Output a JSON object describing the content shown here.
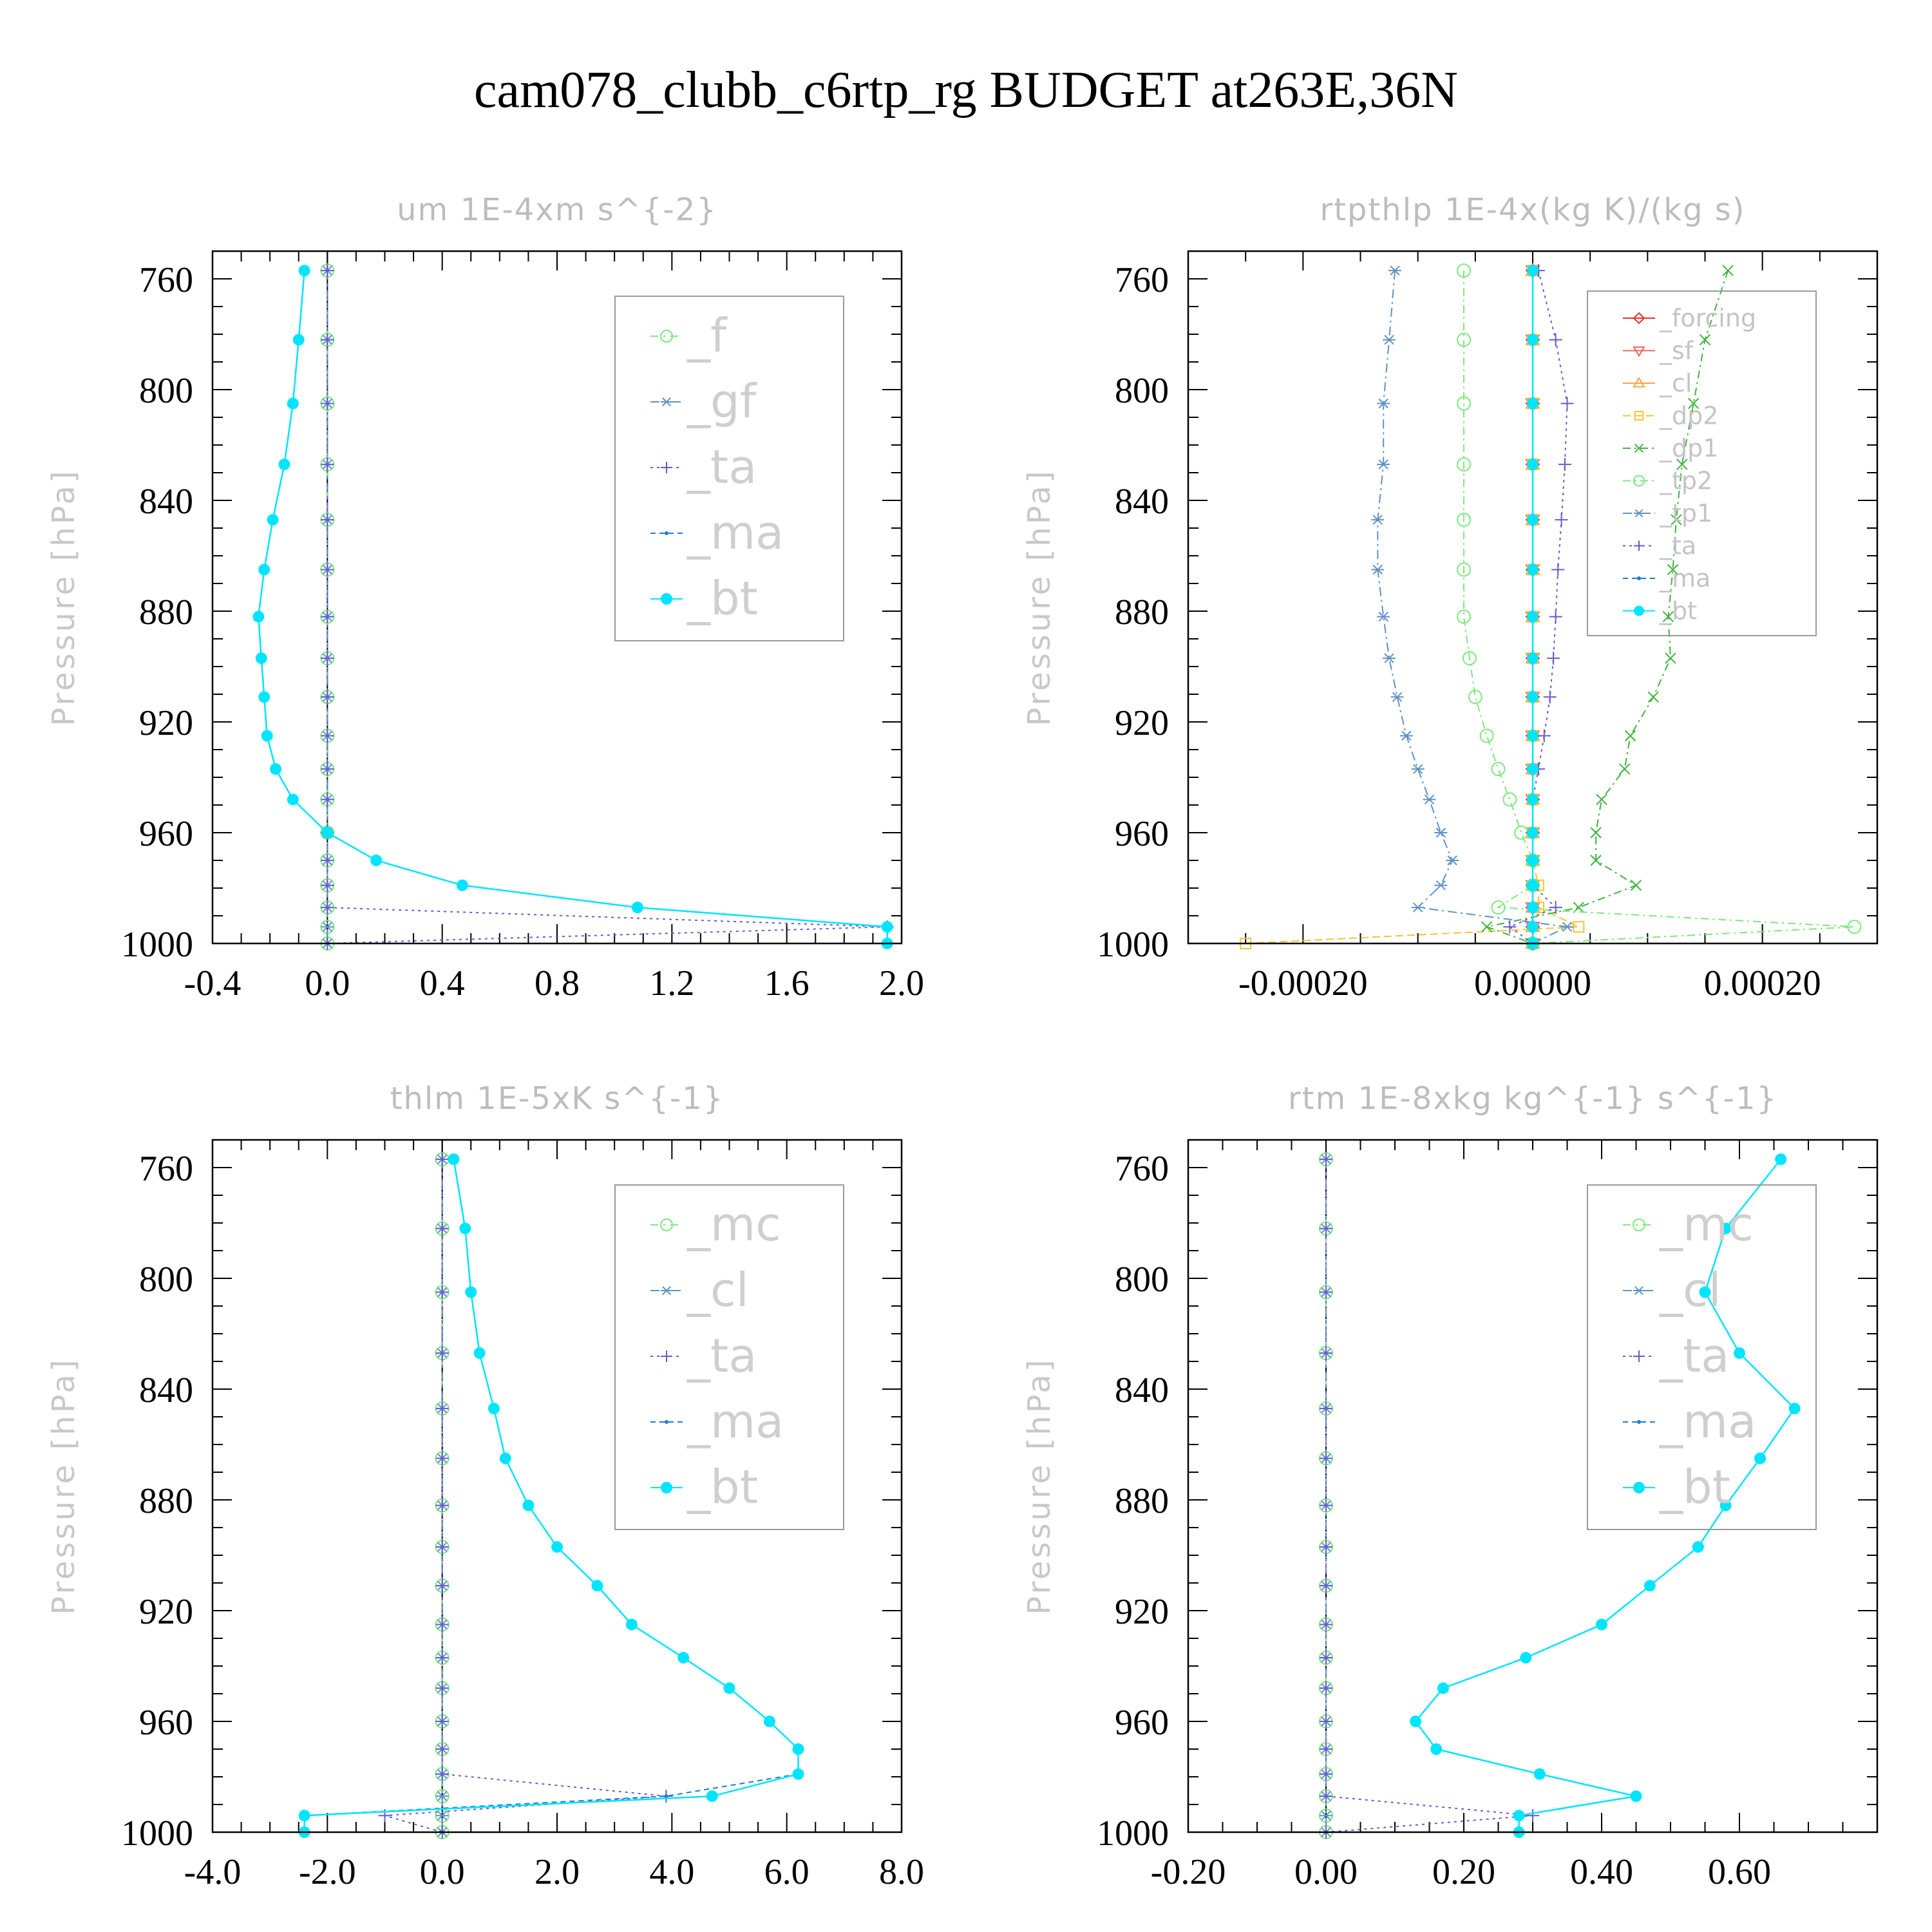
{
  "title": "cam078_clubb_c6rtp_rg  BUDGET at263E,36N",
  "y_levels": [
    757,
    782,
    805,
    827,
    847,
    865,
    882,
    897,
    911,
    925,
    937,
    948,
    960,
    970,
    979,
    987,
    994,
    1000
  ],
  "chart_data": [
    {
      "type": "line",
      "title": "um   1E-4xm s^{-2}",
      "ylabel": "Pressure [hPa]",
      "ylim": [
        1000,
        750
      ],
      "yticks": [
        760,
        800,
        840,
        880,
        920,
        960,
        1000
      ],
      "xlim": [
        -0.4,
        2.0
      ],
      "xticks": [
        -0.4,
        0.0,
        0.4,
        0.8,
        1.2,
        1.6,
        2.0
      ],
      "xtick_labels": [
        "-0.4",
        "0.0",
        "0.4",
        "0.8",
        "1.2",
        "1.6",
        "2.0"
      ],
      "legend_style": "big",
      "series": [
        {
          "name": "_f",
          "color": "#7ce87c",
          "marker": "circle",
          "dash": "12,8,3,8",
          "values": [
            0,
            0,
            0,
            0,
            0,
            0,
            0,
            0,
            0,
            0,
            0,
            0,
            0,
            0,
            0,
            0,
            0,
            0
          ]
        },
        {
          "name": "_gf",
          "color": "#5f92c8",
          "marker": "star",
          "dash": "14,8,3,8",
          "values": [
            0,
            0,
            0,
            0,
            0,
            0,
            0,
            0,
            0,
            0,
            0,
            0,
            0,
            0,
            0,
            0,
            0,
            0
          ]
        },
        {
          "name": "_ta",
          "color": "#6a5acd",
          "marker": "plus",
          "dash": "4,6",
          "values": [
            0,
            0,
            0,
            0,
            0,
            0,
            0,
            0,
            0,
            0,
            0,
            0,
            0,
            0,
            0,
            0,
            1.95,
            0
          ]
        },
        {
          "name": "_ma",
          "color": "#1e7ad8",
          "marker": "dot",
          "dash": "8,6",
          "values": [
            -0.08,
            -0.1,
            -0.12,
            -0.15,
            -0.19,
            -0.22,
            -0.24,
            -0.23,
            -0.22,
            -0.21,
            -0.18,
            -0.12,
            0.0,
            0.17,
            0.47,
            1.08,
            1.95,
            1.95
          ]
        },
        {
          "name": "_bt",
          "color": "#00e5ff",
          "marker": "filled",
          "dash": "",
          "values": [
            -0.08,
            -0.1,
            -0.12,
            -0.15,
            -0.19,
            -0.22,
            -0.24,
            -0.23,
            -0.22,
            -0.21,
            -0.18,
            -0.12,
            0.0,
            0.17,
            0.47,
            1.08,
            1.95,
            1.95
          ]
        }
      ]
    },
    {
      "type": "line",
      "title": "rtpthlp   1E-4x(kg K)/(kg s)",
      "ylabel": "Pressure [hPa]",
      "ylim": [
        1000,
        750
      ],
      "yticks": [
        760,
        800,
        840,
        880,
        920,
        960,
        1000
      ],
      "xlim": [
        -0.0003,
        0.0003
      ],
      "xticks": [
        -0.0002,
        0.0,
        0.0002
      ],
      "xtick_labels": [
        "-0.00020",
        "0.00000",
        "0.00020"
      ],
      "legend_style": "small",
      "series": [
        {
          "name": "_forcing",
          "color": "#e8322c",
          "marker": "diamond",
          "dash": "",
          "values": [
            0,
            0,
            0,
            0,
            0,
            0,
            0,
            0,
            0,
            0,
            0,
            0,
            0,
            0,
            0,
            0,
            0,
            0
          ]
        },
        {
          "name": "_sf",
          "color": "#e86a5c",
          "marker": "tri-down",
          "dash": "",
          "values": [
            0,
            0,
            0,
            0,
            0,
            0,
            0,
            0,
            0,
            0,
            0,
            0,
            0,
            0,
            0,
            0,
            0,
            0
          ]
        },
        {
          "name": "_cl",
          "color": "#f4a640",
          "marker": "tri-up",
          "dash": "",
          "values": [
            0,
            0,
            0,
            0,
            0,
            0,
            0,
            0,
            0,
            0,
            0,
            0,
            0,
            0,
            0,
            0,
            0,
            0
          ]
        },
        {
          "name": "_dp2",
          "color": "#f4c430",
          "marker": "square",
          "dash": "12,6",
          "values": [
            0,
            0,
            0,
            0,
            0,
            0,
            0,
            0,
            0,
            0,
            0,
            0,
            0,
            0,
            5e-06,
            5e-06,
            4e-05,
            -0.00025
          ]
        },
        {
          "name": "_dp1",
          "color": "#3fb43f",
          "marker": "x",
          "dash": "12,6,3,6",
          "values": [
            0.00017,
            0.00015,
            0.00014,
            0.00013,
            0.000125,
            0.000122,
            0.000118,
            0.00012,
            0.000105,
            8.5e-05,
            8e-05,
            6e-05,
            5.5e-05,
            5.5e-05,
            9e-05,
            4e-05,
            -4e-05,
            0
          ]
        },
        {
          "name": "_tp2",
          "color": "#7ce87c",
          "marker": "circle",
          "dash": "12,6,3,6",
          "values": [
            -6e-05,
            -6e-05,
            -6e-05,
            -6e-05,
            -6e-05,
            -6e-05,
            -6e-05,
            -5.5e-05,
            -5e-05,
            -4e-05,
            -3e-05,
            -2e-05,
            -1e-05,
            0,
            0,
            -3e-05,
            0.00028,
            0
          ]
        },
        {
          "name": "_tp1",
          "color": "#5f92c8",
          "marker": "star",
          "dash": "14,6,3,6",
          "values": [
            -0.00012,
            -0.000125,
            -0.00013,
            -0.00013,
            -0.000135,
            -0.000135,
            -0.00013,
            -0.000125,
            -0.000118,
            -0.00011,
            -0.0001,
            -9e-05,
            -8e-05,
            -7e-05,
            -8e-05,
            -0.0001,
            3e-05,
            0
          ]
        },
        {
          "name": "_ta",
          "color": "#6a5acd",
          "marker": "plus",
          "dash": "4,6",
          "values": [
            5e-06,
            2e-05,
            3e-05,
            2.8e-05,
            2.5e-05,
            2.2e-05,
            2e-05,
            1.8e-05,
            1.5e-05,
            1e-05,
            5e-06,
            0,
            0,
            0,
            0,
            2e-05,
            -2e-05,
            0
          ]
        },
        {
          "name": "_ma",
          "color": "#1e7ad8",
          "marker": "dot",
          "dash": "8,6",
          "values": [
            0,
            0,
            0,
            0,
            0,
            0,
            0,
            0,
            0,
            0,
            0,
            0,
            0,
            0,
            0,
            0,
            0,
            0
          ]
        },
        {
          "name": "_bt",
          "color": "#00e5ff",
          "marker": "filled",
          "dash": "",
          "values": [
            0,
            0,
            0,
            0,
            0,
            0,
            0,
            0,
            0,
            0,
            0,
            0,
            0,
            0,
            0,
            0,
            0,
            0
          ]
        }
      ]
    },
    {
      "type": "line",
      "title": "thlm   1E-5xK s^{-1}",
      "ylabel": "Pressure [hPa]",
      "ylim": [
        1000,
        750
      ],
      "yticks": [
        760,
        800,
        840,
        880,
        920,
        960,
        1000
      ],
      "xlim": [
        -4.0,
        8.0
      ],
      "xticks": [
        -4.0,
        -2.0,
        0.0,
        2.0,
        4.0,
        6.0,
        8.0
      ],
      "xtick_labels": [
        "-4.0",
        "-2.0",
        "0.0",
        "2.0",
        "4.0",
        "6.0",
        "8.0"
      ],
      "legend_style": "big",
      "series": [
        {
          "name": "_mc",
          "color": "#7ce87c",
          "marker": "circle",
          "dash": "12,8,3,8",
          "values": [
            0,
            0,
            0,
            0,
            0,
            0,
            0,
            0,
            0,
            0,
            0,
            0,
            0,
            0,
            0,
            0,
            0,
            0
          ]
        },
        {
          "name": "_cl",
          "color": "#5f92c8",
          "marker": "star",
          "dash": "14,8,3,8",
          "values": [
            0,
            0,
            0,
            0,
            0,
            0,
            0,
            0,
            0,
            0,
            0,
            0,
            0,
            0,
            0,
            0,
            0,
            0
          ]
        },
        {
          "name": "_ta",
          "color": "#6a5acd",
          "marker": "plus",
          "dash": "4,6",
          "values": [
            0,
            0,
            0,
            0,
            0,
            0,
            0,
            0,
            0,
            0,
            0,
            0,
            0,
            0,
            0,
            3.9,
            -1.0,
            0
          ]
        },
        {
          "name": "_ma",
          "color": "#1e7ad8",
          "marker": "dot",
          "dash": "8,6",
          "values": [
            0.2,
            0.4,
            0.5,
            0.65,
            0.9,
            1.1,
            1.5,
            2.0,
            2.7,
            3.3,
            4.2,
            5.0,
            5.7,
            6.2,
            6.2,
            3.9,
            -2.4,
            -2.4
          ]
        },
        {
          "name": "_bt",
          "color": "#00e5ff",
          "marker": "filled",
          "dash": "",
          "values": [
            0.2,
            0.4,
            0.5,
            0.65,
            0.9,
            1.1,
            1.5,
            2.0,
            2.7,
            3.3,
            4.2,
            5.0,
            5.7,
            6.2,
            6.2,
            4.7,
            -2.4,
            -2.4
          ]
        }
      ]
    },
    {
      "type": "line",
      "title": "rtm   1E-8xkg kg^{-1} s^{-1}",
      "ylabel": "Pressure [hPa]",
      "ylim": [
        1000,
        750
      ],
      "yticks": [
        760,
        800,
        840,
        880,
        920,
        960,
        1000
      ],
      "xlim": [
        -0.2,
        0.8
      ],
      "xticks": [
        -0.2,
        0.0,
        0.2,
        0.4,
        0.6
      ],
      "xtick_labels": [
        "-0.20",
        "0.00",
        "0.20",
        "0.40",
        "0.60"
      ],
      "legend_style": "big",
      "series": [
        {
          "name": "_mc",
          "color": "#7ce87c",
          "marker": "circle",
          "dash": "12,8,3,8",
          "values": [
            0,
            0,
            0,
            0,
            0,
            0,
            0,
            0,
            0,
            0,
            0,
            0,
            0,
            0,
            0,
            0,
            0,
            0
          ]
        },
        {
          "name": "_cl",
          "color": "#5f92c8",
          "marker": "star",
          "dash": "14,8,3,8",
          "values": [
            0,
            0,
            0,
            0,
            0,
            0,
            0,
            0,
            0,
            0,
            0,
            0,
            0,
            0,
            0,
            0,
            0,
            0
          ]
        },
        {
          "name": "_ta",
          "color": "#6a5acd",
          "marker": "plus",
          "dash": "4,6",
          "values": [
            0,
            0,
            0,
            0,
            0,
            0,
            0,
            0,
            0,
            0,
            0,
            0,
            0,
            0,
            0,
            0,
            0.3,
            0
          ]
        },
        {
          "name": "_ma",
          "color": "#1e7ad8",
          "marker": "dot",
          "dash": "8,6",
          "values": [
            0.66,
            0.58,
            0.55,
            0.6,
            0.68,
            0.63,
            0.58,
            0.54,
            0.47,
            0.4,
            0.29,
            0.17,
            0.13,
            0.16,
            0.31,
            0.45,
            0.28,
            0.28
          ]
        },
        {
          "name": "_bt",
          "color": "#00e5ff",
          "marker": "filled",
          "dash": "",
          "values": [
            0.66,
            0.58,
            0.55,
            0.6,
            0.68,
            0.63,
            0.58,
            0.54,
            0.47,
            0.4,
            0.29,
            0.17,
            0.13,
            0.16,
            0.31,
            0.45,
            0.28,
            0.28
          ]
        }
      ]
    }
  ]
}
